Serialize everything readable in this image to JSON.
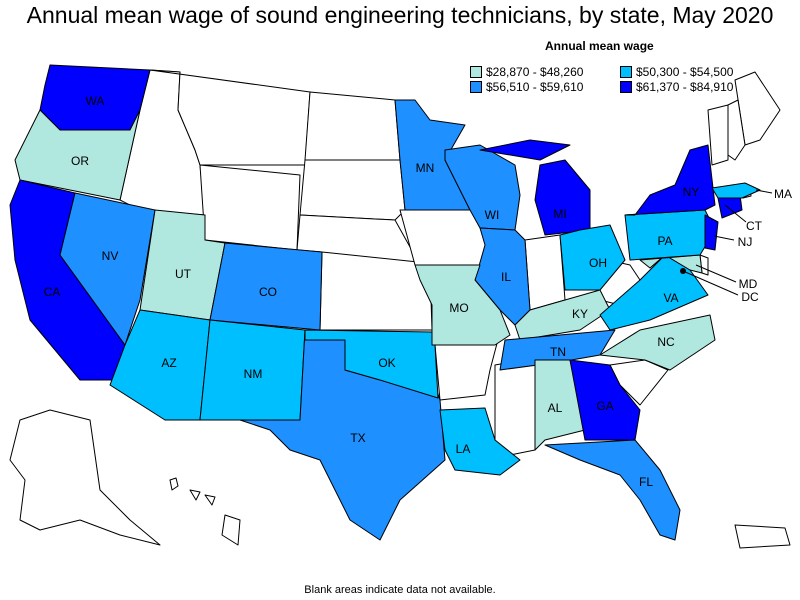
{
  "title": "Annual mean wage of sound engineering technicians, by state, May 2020",
  "legend": {
    "title": "Annual mean wage",
    "items": [
      {
        "label": "$28,870 - $48,260",
        "color": "#b0e8e0"
      },
      {
        "label": "$50,300 - $54,500",
        "color": "#00bfff"
      },
      {
        "label": "$56,510 - $59,610",
        "color": "#1e90ff"
      },
      {
        "label": "$61,370 - $84,910",
        "color": "#0000ff"
      }
    ]
  },
  "footnote": "Blank areas indicate data not available.",
  "states": {
    "WA": "WA",
    "OR": "OR",
    "CA": "CA",
    "NV": "NV",
    "UT": "UT",
    "AZ": "AZ",
    "CO": "CO",
    "NM": "NM",
    "TX": "TX",
    "OK": "OK",
    "MN": "MN",
    "WI": "WI",
    "IL": "IL",
    "MO": "MO",
    "LA": "LA",
    "MI": "MI",
    "OH": "OH",
    "KY": "KY",
    "TN": "TN",
    "AL": "AL",
    "GA": "GA",
    "FL": "FL",
    "NC": "NC",
    "VA": "VA",
    "PA": "PA",
    "NY": "NY",
    "NJ": "NJ",
    "CT": "CT",
    "MA": "MA",
    "MD": "MD",
    "DC": "DC"
  }
}
